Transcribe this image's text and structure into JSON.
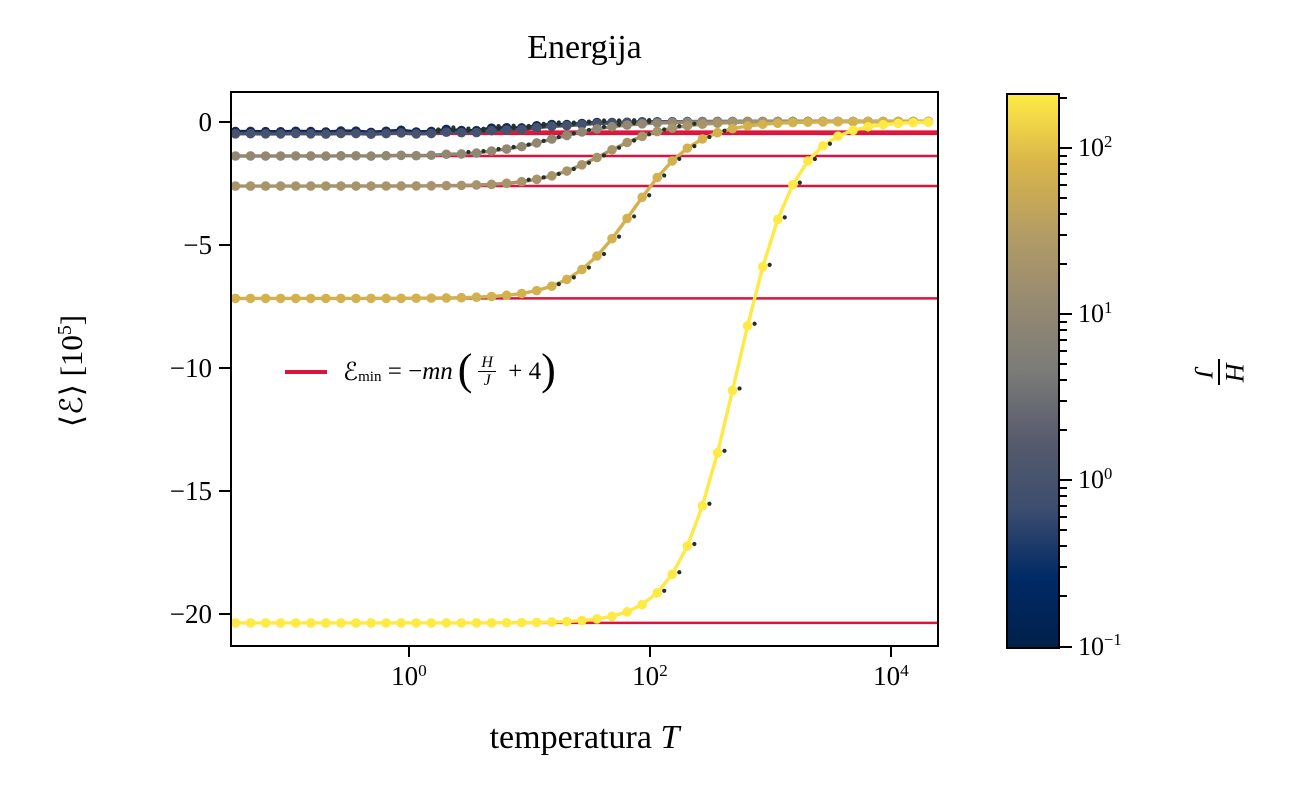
{
  "page": {
    "title": "Energija"
  },
  "axes": {
    "x_label_text": "temperatura ",
    "x_label_var": "T",
    "y_label_pre": "⟨ℰ⟩ [10",
    "y_label_exp": "5",
    "y_label_close": "]",
    "x_ticks": [
      {
        "base": "10",
        "exp": "0",
        "log": 0
      },
      {
        "base": "10",
        "exp": "2",
        "log": 2
      },
      {
        "base": "10",
        "exp": "4",
        "log": 4
      }
    ],
    "y_ticks": [
      {
        "label": "0",
        "value": 0
      },
      {
        "label": "−5",
        "value": -5
      },
      {
        "label": "−10",
        "value": -10
      },
      {
        "label": "−15",
        "value": -15
      },
      {
        "label": "−20",
        "value": -20
      }
    ]
  },
  "legend": {
    "swatch_color": "#DC143C",
    "e_script": "ℰ",
    "e_sub": "min",
    "equals": " = −",
    "mn": "mn",
    "paren_open": "(",
    "frac_num": "H",
    "frac_den": "J",
    "plus_term": " + 4",
    "paren_close": ")"
  },
  "colorbar": {
    "colormap": "cividis",
    "scale": "log",
    "min": 0.1,
    "max": 208,
    "label_num": "H",
    "label_den": "J",
    "ticks": [
      {
        "base": "10",
        "exp": "2",
        "log": 2
      },
      {
        "base": "10",
        "exp": "1",
        "log": 1
      },
      {
        "base": "10",
        "exp": "0",
        "log": 0
      },
      {
        "base": "10",
        "exp": "−1",
        "log": -1
      }
    ],
    "gradient_top_to_bottom": [
      "#FFEA46",
      "#D9B54A",
      "#B49C64",
      "#968A71",
      "#7B7B78",
      "#575B6D",
      "#3C4D6E",
      "#002A66",
      "#00204C"
    ]
  },
  "chart_data": {
    "type": "line",
    "title": "Energija",
    "xlabel": "temperatura T",
    "ylabel": "⟨ℰ⟩ [10⁵]",
    "x_scale": "log",
    "x_range": [
      0.034,
      24000
    ],
    "y_range": [
      -21.2,
      1.15
    ],
    "x_tick_values": [
      1,
      100,
      10000
    ],
    "y_tick_values": [
      0,
      -5,
      -10,
      -15,
      -20
    ],
    "y_units": "10^5",
    "grid": false,
    "legend_position": "center-left",
    "sampling": {
      "log_t_min": -1.44,
      "log_t_step": 0.125,
      "n_points": 47
    },
    "series": [
      {
        "name": "H/J=0.1",
        "h_over_j": 0.1,
        "e_min": -0.41,
        "t_mid_log10": 1.0,
        "width_dec": 0.3,
        "wobble": 0.05,
        "color": "#14295A"
      },
      {
        "name": "H/J=1",
        "h_over_j": 1,
        "e_min": -0.5,
        "t_mid_log10": 1.08,
        "width_dec": 0.3,
        "wobble": 0.03,
        "color": "#47536E"
      },
      {
        "name": "H/J=10",
        "h_over_j": 10,
        "e_min": -1.4,
        "t_mid_log10": 1.2,
        "width_dec": 0.28,
        "wobble": 0.015,
        "color": "#918772"
      },
      {
        "name": "H/J=22",
        "h_over_j": 22,
        "e_min": -2.62,
        "t_mid_log10": 1.62,
        "width_dec": 0.26,
        "wobble": 0,
        "color": "#A7946A"
      },
      {
        "name": "H/J=68",
        "h_over_j": 68,
        "e_min": -7.18,
        "t_mid_log10": 1.86,
        "width_dec": 0.26,
        "wobble": 0,
        "color": "#D2B14E"
      },
      {
        "name": "H/J=200",
        "h_over_j": 200,
        "e_min": -20.35,
        "t_mid_log10": 2.72,
        "width_dec": 0.24,
        "wobble": 0,
        "color": "#FFE945"
      }
    ],
    "reference_lines": {
      "label": "ℰ_min = −mn(H/J + 4)",
      "color": "#DC143C",
      "values": [
        -0.41,
        -0.5,
        -1.4,
        -2.62,
        -7.18,
        -20.35
      ]
    },
    "inner_dots": {
      "color": "#233128",
      "radius": 2.1,
      "dx": 7,
      "dy": -2
    }
  }
}
